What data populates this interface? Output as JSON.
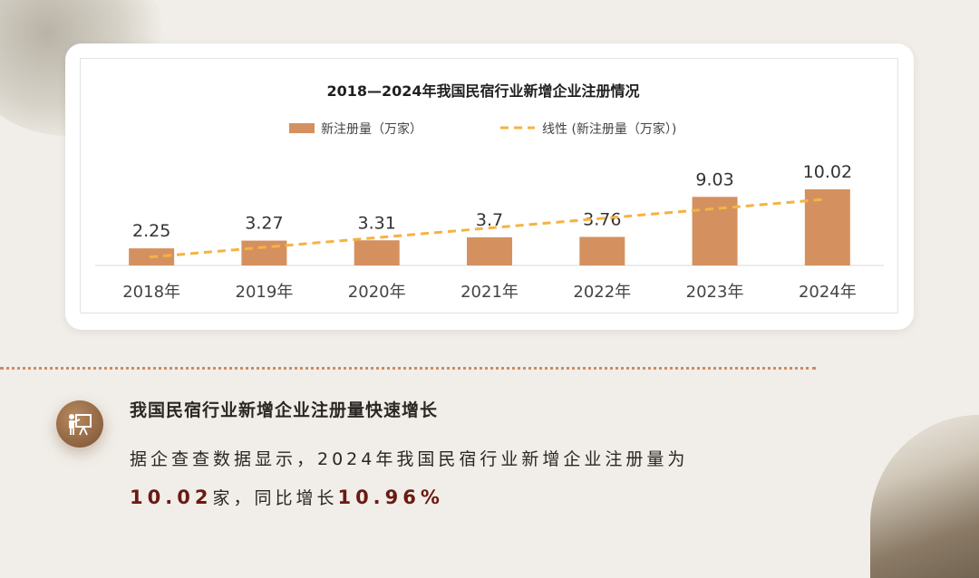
{
  "chart_data": {
    "type": "bar",
    "title": "2018—2024年我国民宿行业新增企业注册情况",
    "categories": [
      "2018年",
      "2019年",
      "2020年",
      "2021年",
      "2022年",
      "2023年",
      "2024年"
    ],
    "series": [
      {
        "name": "新注册量（万家）",
        "values": [
          2.25,
          3.27,
          3.31,
          3.7,
          3.76,
          9.03,
          10.02
        ],
        "color": "#d4915f"
      }
    ],
    "trendline": {
      "name": "线性 (新注册量（万家）)",
      "start": 1.1,
      "end": 8.7,
      "color": "#f5b342"
    },
    "legend": "top",
    "grid": false,
    "ylim": [
      0,
      10.02
    ]
  },
  "summary": {
    "heading": "我国民宿行业新增企业注册量快速增长",
    "text_part1": "据企查查数据显示，2024年我国民宿行业新增企业注册量为",
    "value1": "10.02",
    "text_part2": "家，同比增长",
    "value2": "10.96%"
  },
  "icon": "presentation-icon",
  "colors": {
    "background": "#f1eee9",
    "accent": "#d08b5e",
    "highlight": "#6b1a12"
  }
}
